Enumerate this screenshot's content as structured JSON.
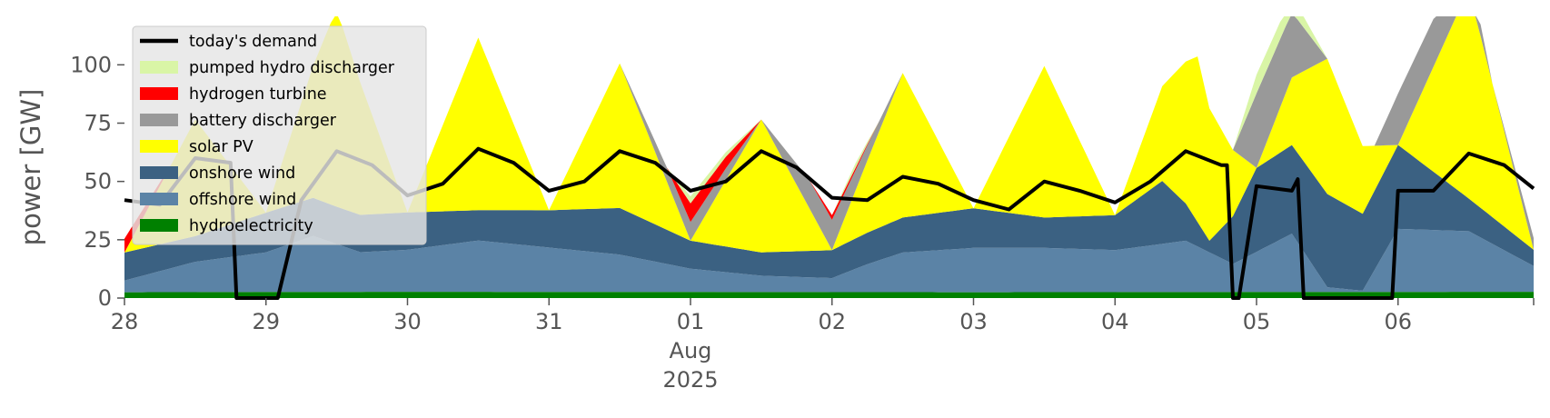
{
  "chart_data": {
    "type": "area",
    "ylabel": "power [GW]",
    "ylim": [
      0,
      120
    ],
    "xlim": [
      "2025-07-28T00:00",
      "2025-08-06T23:00"
    ],
    "grid": false,
    "legend_position": "upper-left",
    "x_ticks": [
      {
        "date": "2025-07-28",
        "label": "28"
      },
      {
        "date": "2025-07-29",
        "label": "29"
      },
      {
        "date": "2025-07-30",
        "label": "30"
      },
      {
        "date": "2025-07-31",
        "label": "31"
      },
      {
        "date": "2025-08-01",
        "label": "01"
      },
      {
        "date": "2025-08-02",
        "label": "02"
      },
      {
        "date": "2025-08-03",
        "label": "03"
      },
      {
        "date": "2025-08-04",
        "label": "04"
      },
      {
        "date": "2025-08-05",
        "label": "05"
      },
      {
        "date": "2025-08-06",
        "label": "06"
      }
    ],
    "x_month_label": "Aug",
    "x_year_label": "2025",
    "y_ticks": [
      0,
      25,
      50,
      75,
      100
    ],
    "legend": [
      {
        "name": "today's demand",
        "color": "#000000",
        "kind": "line"
      },
      {
        "name": "pumped hydro discharger",
        "color": "#d9f5a6",
        "kind": "patch"
      },
      {
        "name": "hydrogen turbine",
        "color": "#ff0000",
        "kind": "patch"
      },
      {
        "name": "battery discharger",
        "color": "#999999",
        "kind": "patch"
      },
      {
        "name": "solar PV",
        "color": "#ffff00",
        "kind": "patch"
      },
      {
        "name": "onshore wind",
        "color": "#3b6182",
        "kind": "patch"
      },
      {
        "name": "offshore wind",
        "color": "#5b83a6",
        "kind": "patch"
      },
      {
        "name": "hydroelectricity",
        "color": "#008000",
        "kind": "patch"
      }
    ],
    "stack_order_bottom_to_top": [
      "hydroelectricity",
      "offshore wind",
      "onshore wind",
      "solar PV",
      "battery discharger",
      "hydrogen turbine",
      "pumped hydro discharger"
    ],
    "series": [
      {
        "name": "hydroelectricity",
        "color": "#008000",
        "times": [
          "2025-07-28T00:00",
          "2025-07-30T00:00",
          "2025-08-01T00:00",
          "2025-08-03T00:00",
          "2025-08-05T00:00",
          "2025-08-06T23:00"
        ],
        "values": [
          2.5,
          2.7,
          2.6,
          2.5,
          2.6,
          2.7
        ]
      },
      {
        "name": "offshore wind",
        "color": "#5b83a6",
        "times": [
          "2025-07-28T00:00",
          "2025-07-28T12:00",
          "2025-07-29T00:00",
          "2025-07-29T08:00",
          "2025-07-29T16:00",
          "2025-07-30T00:00",
          "2025-07-30T12:00",
          "2025-07-31T00:00",
          "2025-07-31T12:00",
          "2025-08-01T00:00",
          "2025-08-01T12:00",
          "2025-08-02T00:00",
          "2025-08-02T06:00",
          "2025-08-02T12:00",
          "2025-08-03T00:00",
          "2025-08-03T12:00",
          "2025-08-04T00:00",
          "2025-08-04T12:00",
          "2025-08-04T20:00",
          "2025-08-05T06:00",
          "2025-08-05T12:00",
          "2025-08-05T18:00",
          "2025-08-06T00:00",
          "2025-08-06T12:00",
          "2025-08-06T23:00"
        ],
        "values": [
          5,
          13,
          17,
          24,
          17,
          18,
          22,
          19,
          16,
          10,
          7,
          6,
          12,
          17,
          19,
          19,
          18,
          22,
          12,
          25,
          2,
          0.5,
          27,
          26,
          11
        ]
      },
      {
        "name": "onshore wind",
        "color": "#3b6182",
        "times": [
          "2025-07-28T00:00",
          "2025-07-28T12:00",
          "2025-07-29T00:00",
          "2025-07-29T12:00",
          "2025-07-30T00:00",
          "2025-07-30T12:00",
          "2025-07-31T00:00",
          "2025-07-31T12:00",
          "2025-08-01T00:00",
          "2025-08-01T12:00",
          "2025-08-02T00:00",
          "2025-08-02T12:00",
          "2025-08-03T00:00",
          "2025-08-03T12:00",
          "2025-08-04T00:00",
          "2025-08-04T08:00",
          "2025-08-04T16:00",
          "2025-08-05T00:00",
          "2025-08-05T12:00",
          "2025-08-05T18:00",
          "2025-08-06T00:00",
          "2025-08-06T12:00",
          "2025-08-06T23:00"
        ],
        "values": [
          12,
          11,
          17,
          16,
          16,
          13,
          16,
          20,
          12,
          10,
          12,
          15,
          17,
          13,
          15,
          27,
          5,
          36,
          40,
          33,
          36,
          14,
          7
        ]
      },
      {
        "name": "solar PV",
        "color": "#ffff00",
        "times": [
          "2025-07-28T00:00",
          "2025-07-28T12:00",
          "2025-07-29T00:00",
          "2025-07-29T12:00",
          "2025-07-30T00:00",
          "2025-07-30T12:00",
          "2025-07-31T00:00",
          "2025-07-31T12:00",
          "2025-08-01T00:00",
          "2025-08-01T12:00",
          "2025-08-02T00:00",
          "2025-08-02T12:00",
          "2025-08-03T00:00",
          "2025-08-03T12:00",
          "2025-08-04T00:00",
          "2025-08-04T14:00",
          "2025-08-05T00:00",
          "2025-08-05T12:00",
          "2025-08-06T00:00",
          "2025-08-06T12:00",
          "2025-08-06T23:00"
        ],
        "values": [
          0,
          50,
          0,
          85,
          0,
          74,
          0,
          62,
          0,
          57,
          0,
          62,
          0,
          65,
          0,
          71,
          0,
          58,
          0,
          90,
          0
        ]
      },
      {
        "name": "battery discharger",
        "color": "#999999",
        "times": [
          "2025-07-28T00:00",
          "2025-07-30T00:00",
          "2025-07-31T12:00",
          "2025-07-31T20:00",
          "2025-08-01T00:00",
          "2025-08-01T06:00",
          "2025-08-01T12:00",
          "2025-08-01T20:00",
          "2025-08-02T00:00",
          "2025-08-02T12:00",
          "2025-08-02T20:00",
          "2025-08-04T00:00",
          "2025-08-04T20:00",
          "2025-08-05T00:00",
          "2025-08-05T06:00",
          "2025-08-05T12:00",
          "2025-08-05T20:00",
          "2025-08-06T00:00",
          "2025-08-06T08:00",
          "2025-08-06T16:00",
          "2025-08-06T23:00"
        ],
        "values": [
          0,
          0,
          0,
          6,
          8,
          5,
          0,
          12,
          13,
          0,
          0,
          0,
          0,
          32,
          28,
          0,
          0,
          22,
          20,
          0,
          5
        ]
      },
      {
        "name": "hydrogen turbine",
        "color": "#ff0000",
        "times": [
          "2025-07-28T00:00",
          "2025-07-28T04:00",
          "2025-07-28T08:00",
          "2025-07-31T20:00",
          "2025-08-01T00:00",
          "2025-08-01T06:00",
          "2025-08-01T12:00",
          "2025-08-01T20:00",
          "2025-08-02T00:00",
          "2025-08-02T04:00",
          "2025-08-02T08:00",
          "2025-08-06T23:00"
        ],
        "values": [
          6,
          3,
          0,
          0,
          8,
          5,
          0,
          0,
          2,
          1,
          0,
          0
        ]
      },
      {
        "name": "pumped hydro discharger",
        "color": "#d9f5a6",
        "times": [
          "2025-07-28T00:00",
          "2025-07-31T20:00",
          "2025-08-01T00:00",
          "2025-08-01T06:00",
          "2025-08-01T12:00",
          "2025-08-02T00:00",
          "2025-08-02T04:00",
          "2025-08-02T08:00",
          "2025-08-04T20:00",
          "2025-08-05T00:00",
          "2025-08-05T06:00",
          "2025-08-05T12:00",
          "2025-08-06T23:00"
        ],
        "values": [
          0,
          0,
          3,
          2,
          0,
          0,
          2,
          0,
          0,
          8,
          7,
          0,
          0
        ]
      }
    ],
    "demand": {
      "name": "today's demand",
      "color": "#000000",
      "times": [
        "2025-07-28T00:00",
        "2025-07-28T06:00",
        "2025-07-28T12:00",
        "2025-07-28T18:00",
        "2025-07-28T19:00",
        "2025-07-29T00:00",
        "2025-07-29T02:00",
        "2025-07-29T06:00",
        "2025-07-29T12:00",
        "2025-07-29T18:00",
        "2025-07-30T00:00",
        "2025-07-30T06:00",
        "2025-07-30T12:00",
        "2025-07-30T18:00",
        "2025-07-31T00:00",
        "2025-07-31T06:00",
        "2025-07-31T12:00",
        "2025-07-31T18:00",
        "2025-08-01T00:00",
        "2025-08-01T06:00",
        "2025-08-01T12:00",
        "2025-08-01T18:00",
        "2025-08-02T00:00",
        "2025-08-02T06:00",
        "2025-08-02T12:00",
        "2025-08-02T18:00",
        "2025-08-03T00:00",
        "2025-08-03T06:00",
        "2025-08-03T12:00",
        "2025-08-03T18:00",
        "2025-08-04T00:00",
        "2025-08-04T06:00",
        "2025-08-04T12:00",
        "2025-08-04T18:00",
        "2025-08-04T19:00",
        "2025-08-04T20:00",
        "2025-08-04T21:00",
        "2025-08-05T00:00",
        "2025-08-05T06:00",
        "2025-08-05T07:00",
        "2025-08-05T08:00",
        "2025-08-05T18:00",
        "2025-08-05T23:00",
        "2025-08-06T00:00",
        "2025-08-06T06:00",
        "2025-08-06T12:00",
        "2025-08-06T18:00",
        "2025-08-06T23:00"
      ],
      "values": [
        42,
        40,
        60,
        58,
        0,
        0,
        0,
        42,
        63,
        57,
        44,
        49,
        64,
        58,
        46,
        50,
        63,
        58,
        46,
        50,
        63,
        56,
        43,
        42,
        52,
        49,
        42,
        38,
        50,
        46,
        41,
        50,
        63,
        57,
        57,
        0,
        0,
        48,
        46,
        51,
        0,
        0,
        0,
        46,
        46,
        62,
        57,
        47
      ]
    }
  }
}
